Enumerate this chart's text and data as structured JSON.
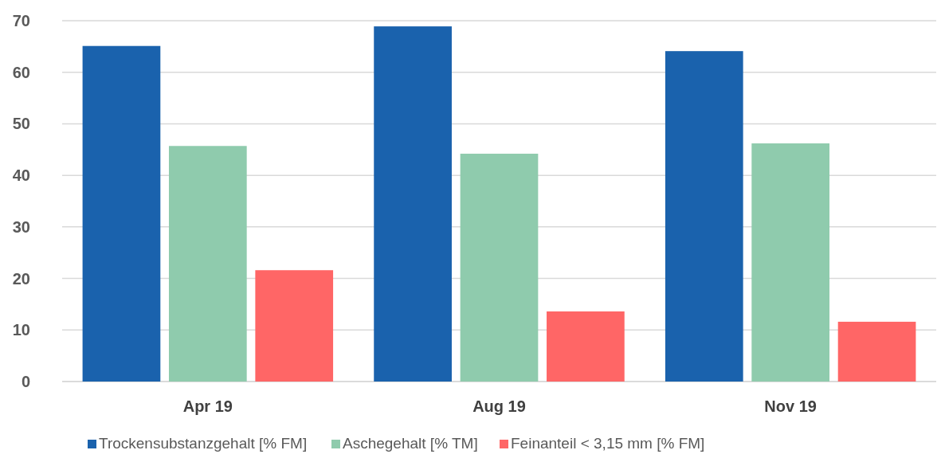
{
  "chart_data": {
    "type": "bar",
    "categories": [
      "Apr 19",
      "Aug 19",
      "Nov 19"
    ],
    "series": [
      {
        "name": "Trockensubstanzgehalt [% FM]",
        "color": "#1a62ad",
        "values": [
          65.1,
          68.9,
          64.1
        ]
      },
      {
        "name": "Aschegehalt [% TM]",
        "color": "#8fcbad",
        "values": [
          45.7,
          44.2,
          46.2
        ]
      },
      {
        "name": "Feinanteil < 3,15 mm [% FM]",
        "color": "#ff6666",
        "values": [
          21.6,
          13.6,
          11.6
        ]
      }
    ],
    "ylim": [
      0,
      70
    ],
    "yticks": [
      0,
      10,
      20,
      30,
      40,
      50,
      60,
      70
    ],
    "grid": "y",
    "legend": "bottom"
  }
}
